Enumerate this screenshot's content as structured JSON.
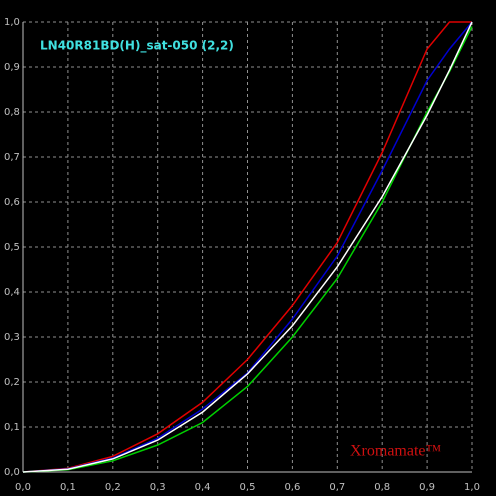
{
  "chart_data": {
    "type": "line",
    "title": "LN40R81BD(H)_sat-050 (2,2)",
    "watermark": "Xromamate™",
    "x": [
      0,
      0.1,
      0.2,
      0.3,
      0.4,
      0.5,
      0.6,
      0.7,
      0.8,
      0.9,
      0.95,
      1.0
    ],
    "series": [
      {
        "color": "#e00000",
        "values": [
          0,
          0.008,
          0.035,
          0.085,
          0.155,
          0.25,
          0.37,
          0.51,
          0.71,
          0.94,
          1.0,
          1.0
        ]
      },
      {
        "color": "#0000d0",
        "values": [
          0,
          0.007,
          0.031,
          0.075,
          0.14,
          0.22,
          0.34,
          0.48,
          0.67,
          0.87,
          0.94,
          1.0
        ]
      },
      {
        "color": "#00d000",
        "values": [
          0,
          0.005,
          0.025,
          0.06,
          0.11,
          0.19,
          0.3,
          0.43,
          0.6,
          0.8,
          0.89,
          0.99
        ]
      },
      {
        "color": "#ffffff",
        "values": [
          0,
          0.0063,
          0.029,
          0.071,
          0.133,
          0.218,
          0.325,
          0.456,
          0.612,
          0.793,
          0.893,
          1.0
        ]
      }
    ],
    "xlim": [
      0,
      1
    ],
    "ylim": [
      0,
      1
    ],
    "xticks": [
      {
        "value": 0,
        "label": "0,0"
      },
      {
        "value": 0.1,
        "label": "0,1"
      },
      {
        "value": 0.2,
        "label": "0,2"
      },
      {
        "value": 0.3,
        "label": "0,3"
      },
      {
        "value": 0.4,
        "label": "0,4"
      },
      {
        "value": 0.5,
        "label": "0,5"
      },
      {
        "value": 0.6,
        "label": "0,6"
      },
      {
        "value": 0.7,
        "label": "0,7"
      },
      {
        "value": 0.8,
        "label": "0,8"
      },
      {
        "value": 0.9,
        "label": "0,9"
      },
      {
        "value": 1,
        "label": "1,0"
      }
    ],
    "yticks": [
      {
        "value": 0,
        "label": "0,0"
      },
      {
        "value": 0.1,
        "label": "0,1"
      },
      {
        "value": 0.2,
        "label": "0,2"
      },
      {
        "value": 0.3,
        "label": "0,3"
      },
      {
        "value": 0.4,
        "label": "0,4"
      },
      {
        "value": 0.5,
        "label": "0,5"
      },
      {
        "value": 0.6,
        "label": "0,6"
      },
      {
        "value": 0.7,
        "label": "0,7"
      },
      {
        "value": 0.8,
        "label": "0,8"
      },
      {
        "value": 0.9,
        "label": "0,9"
      },
      {
        "value": 1,
        "label": "1,0"
      }
    ],
    "grid": true
  }
}
